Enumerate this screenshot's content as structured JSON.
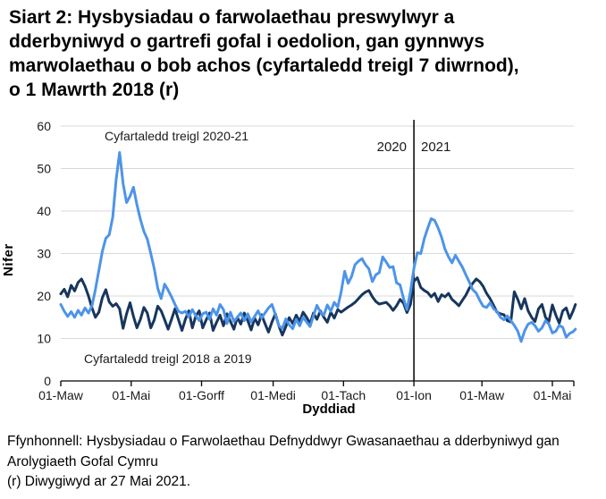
{
  "title": {
    "lines": [
      "Siart 2: Hysbysiadau o farwolaethau preswylwyr a",
      "dderbyniwyd o gartrefi gofal i oedolion, gan gynnwys",
      "marwolaethau o bob achos (cyfartaledd treigl 7 diwrnod),",
      "o 1 Mawrth 2018 (r)"
    ]
  },
  "footer": {
    "source_lines": [
      "Ffynhonnell: Hysbysiadau o Farwolaethau Defnyddwyr Gwasanaethau a dderbyniwyd gan",
      "Arolygiaeth Gofal Cymru"
    ],
    "revision_note": "(r) Diwygiwyd ar 27 Mai 2021."
  },
  "chart_data": {
    "type": "line",
    "xlabel": "Dyddiad",
    "ylabel": "Nifer",
    "ylim": [
      0,
      60
    ],
    "grid": true,
    "colors": {
      "series_2020_21": "#4d94e9",
      "series_2018_2019": "#17365d",
      "grid": "#d9d9d9",
      "axis": "#000000"
    },
    "y_ticks": [
      0,
      10,
      20,
      30,
      40,
      50,
      60
    ],
    "x_ticks": [
      {
        "label": "01-Maw",
        "day": 0
      },
      {
        "label": "01-Mai",
        "day": 61
      },
      {
        "label": "01-Gorff",
        "day": 122
      },
      {
        "label": "01-Medi",
        "day": 184
      },
      {
        "label": "01-Tach",
        "day": 245
      },
      {
        "label": "01-Ion",
        "day": 306
      },
      {
        "label": "01-Maw",
        "day": 365
      },
      {
        "label": "01-Mai",
        "day": 426
      }
    ],
    "year_divider": {
      "day": 306,
      "left_label": "2020",
      "right_label": "2021"
    },
    "annotations": [
      {
        "text": "Cyfartaledd treigl 2020-21",
        "series": "2020-21"
      },
      {
        "text": "Cyfartaledd treigl 2018 a 2019",
        "series": "2018 a 2019"
      }
    ],
    "x_unit": "diwrnodau o 1 Mawrth (day 0 = 01-Maw)",
    "series": [
      {
        "name": "Cyfartaledd treigl 2020-21",
        "color": "#4d94e9",
        "points": [
          [
            0,
            18.0
          ],
          [
            3,
            16.4
          ],
          [
            6,
            15.2
          ],
          [
            9,
            16.3
          ],
          [
            12,
            15.0
          ],
          [
            15,
            16.6
          ],
          [
            18,
            15.5
          ],
          [
            21,
            17.2
          ],
          [
            24,
            16.0
          ],
          [
            27,
            17.7
          ],
          [
            30,
            21.5
          ],
          [
            33,
            26.0
          ],
          [
            36,
            30.5
          ],
          [
            39,
            33.6
          ],
          [
            42,
            34.4
          ],
          [
            45,
            38.5
          ],
          [
            48,
            47.5
          ],
          [
            51,
            53.8
          ],
          [
            54,
            46.5
          ],
          [
            57,
            42.0
          ],
          [
            60,
            43.5
          ],
          [
            63,
            45.6
          ],
          [
            66,
            41.5
          ],
          [
            69,
            38.0
          ],
          [
            72,
            35.2
          ],
          [
            75,
            33.4
          ],
          [
            78,
            30.0
          ],
          [
            81,
            26.4
          ],
          [
            84,
            21.8
          ],
          [
            87,
            19.4
          ],
          [
            90,
            22.8
          ],
          [
            93,
            21.4
          ],
          [
            96,
            19.8
          ],
          [
            99,
            18.0
          ],
          [
            102,
            16.4
          ],
          [
            105,
            16.0
          ],
          [
            108,
            16.4
          ],
          [
            111,
            15.1
          ],
          [
            114,
            16.8
          ],
          [
            117,
            15.4
          ],
          [
            120,
            14.2
          ],
          [
            123,
            15.8
          ],
          [
            126,
            16.2
          ],
          [
            129,
            14.5
          ],
          [
            132,
            17.0
          ],
          [
            135,
            15.5
          ],
          [
            138,
            18.0
          ],
          [
            141,
            16.8
          ],
          [
            144,
            13.5
          ],
          [
            147,
            16.2
          ],
          [
            150,
            14.0
          ],
          [
            153,
            15.0
          ],
          [
            156,
            16.0
          ],
          [
            159,
            14.2
          ],
          [
            162,
            15.8
          ],
          [
            165,
            13.9
          ],
          [
            168,
            15.2
          ],
          [
            171,
            16.5
          ],
          [
            174,
            14.8
          ],
          [
            177,
            16.0
          ],
          [
            180,
            17.2
          ],
          [
            183,
            18.0
          ],
          [
            186,
            15.6
          ],
          [
            189,
            13.0
          ],
          [
            192,
            12.4
          ],
          [
            195,
            14.6
          ],
          [
            198,
            13.2
          ],
          [
            201,
            12.3
          ],
          [
            204,
            14.5
          ],
          [
            207,
            13.0
          ],
          [
            210,
            15.0
          ],
          [
            213,
            13.9
          ],
          [
            216,
            12.8
          ],
          [
            219,
            15.3
          ],
          [
            222,
            17.8
          ],
          [
            225,
            16.2
          ],
          [
            228,
            15.5
          ],
          [
            231,
            17.9
          ],
          [
            234,
            16.4
          ],
          [
            237,
            18.5
          ],
          [
            240,
            17.4
          ],
          [
            243,
            21.0
          ],
          [
            246,
            25.8
          ],
          [
            249,
            23.0
          ],
          [
            252,
            24.6
          ],
          [
            255,
            27.4
          ],
          [
            258,
            28.2
          ],
          [
            261,
            28.8
          ],
          [
            264,
            27.4
          ],
          [
            267,
            26.4
          ],
          [
            270,
            23.4
          ],
          [
            273,
            25.0
          ],
          [
            276,
            25.5
          ],
          [
            279,
            29.2
          ],
          [
            282,
            28.0
          ],
          [
            285,
            26.7
          ],
          [
            288,
            26.9
          ],
          [
            291,
            23.1
          ],
          [
            294,
            22.6
          ],
          [
            297,
            19.4
          ],
          [
            300,
            16.8
          ],
          [
            303,
            21.0
          ],
          [
            306,
            26.5
          ],
          [
            309,
            30.2
          ],
          [
            312,
            30.0
          ],
          [
            315,
            33.5
          ],
          [
            318,
            36.0
          ],
          [
            321,
            38.2
          ],
          [
            324,
            37.8
          ],
          [
            327,
            36.0
          ],
          [
            330,
            33.8
          ],
          [
            333,
            31.0
          ],
          [
            336,
            29.2
          ],
          [
            339,
            27.8
          ],
          [
            342,
            29.6
          ],
          [
            345,
            28.2
          ],
          [
            348,
            26.8
          ],
          [
            351,
            25.0
          ],
          [
            354,
            23.3
          ],
          [
            357,
            21.5
          ],
          [
            360,
            20.7
          ],
          [
            363,
            19.0
          ],
          [
            366,
            17.6
          ],
          [
            369,
            17.3
          ],
          [
            372,
            18.4
          ],
          [
            375,
            17.0
          ],
          [
            378,
            16.4
          ],
          [
            381,
            15.0
          ],
          [
            384,
            14.4
          ],
          [
            387,
            15.3
          ],
          [
            390,
            14.2
          ],
          [
            393,
            13.1
          ],
          [
            396,
            11.7
          ],
          [
            399,
            9.3
          ],
          [
            402,
            11.8
          ],
          [
            405,
            13.4
          ],
          [
            408,
            13.8
          ],
          [
            411,
            13.0
          ],
          [
            414,
            11.7
          ],
          [
            417,
            12.5
          ],
          [
            420,
            14.2
          ],
          [
            423,
            13.4
          ],
          [
            426,
            11.3
          ],
          [
            429,
            11.7
          ],
          [
            432,
            13.1
          ],
          [
            435,
            12.6
          ],
          [
            438,
            10.3
          ],
          [
            441,
            11.2
          ],
          [
            444,
            11.6
          ],
          [
            446,
            12.2
          ]
        ]
      },
      {
        "name": "Cyfartaledd treigl 2018 a 2019",
        "color": "#17365d",
        "points": [
          [
            0,
            20.5
          ],
          [
            3,
            21.6
          ],
          [
            6,
            19.8
          ],
          [
            9,
            22.5
          ],
          [
            12,
            21.2
          ],
          [
            15,
            23.2
          ],
          [
            18,
            24.0
          ],
          [
            21,
            22.3
          ],
          [
            24,
            20.0
          ],
          [
            27,
            17.2
          ],
          [
            30,
            15.0
          ],
          [
            33,
            16.2
          ],
          [
            36,
            19.6
          ],
          [
            39,
            21.5
          ],
          [
            42,
            18.6
          ],
          [
            45,
            17.6
          ],
          [
            48,
            18.2
          ],
          [
            51,
            17.0
          ],
          [
            54,
            12.4
          ],
          [
            57,
            15.8
          ],
          [
            60,
            18.4
          ],
          [
            63,
            15.2
          ],
          [
            66,
            12.5
          ],
          [
            69,
            14.5
          ],
          [
            72,
            17.3
          ],
          [
            75,
            16.0
          ],
          [
            78,
            12.5
          ],
          [
            81,
            14.4
          ],
          [
            84,
            17.6
          ],
          [
            87,
            16.5
          ],
          [
            90,
            14.4
          ],
          [
            93,
            12.2
          ],
          [
            96,
            14.5
          ],
          [
            99,
            17.0
          ],
          [
            102,
            14.4
          ],
          [
            105,
            11.9
          ],
          [
            108,
            14.5
          ],
          [
            111,
            16.5
          ],
          [
            114,
            12.5
          ],
          [
            117,
            15.3
          ],
          [
            120,
            16.5
          ],
          [
            123,
            12.5
          ],
          [
            126,
            14.4
          ],
          [
            129,
            16.0
          ],
          [
            132,
            11.9
          ],
          [
            135,
            13.8
          ],
          [
            138,
            15.5
          ],
          [
            141,
            13.0
          ],
          [
            144,
            15.8
          ],
          [
            147,
            14.0
          ],
          [
            150,
            12.2
          ],
          [
            153,
            15.0
          ],
          [
            156,
            13.4
          ],
          [
            159,
            16.0
          ],
          [
            162,
            14.2
          ],
          [
            165,
            12.0
          ],
          [
            168,
            14.8
          ],
          [
            171,
            13.2
          ],
          [
            174,
            15.6
          ],
          [
            177,
            13.5
          ],
          [
            180,
            11.5
          ],
          [
            183,
            13.9
          ],
          [
            186,
            15.8
          ],
          [
            189,
            13.0
          ],
          [
            192,
            10.8
          ],
          [
            195,
            12.8
          ],
          [
            198,
            14.9
          ],
          [
            201,
            13.5
          ],
          [
            204,
            15.5
          ],
          [
            207,
            14.0
          ],
          [
            210,
            16.2
          ],
          [
            213,
            15.0
          ],
          [
            216,
            13.5
          ],
          [
            219,
            16.0
          ],
          [
            222,
            14.5
          ],
          [
            225,
            16.5
          ],
          [
            228,
            15.0
          ],
          [
            231,
            13.8
          ],
          [
            234,
            16.2
          ],
          [
            237,
            14.8
          ],
          [
            240,
            16.8
          ],
          [
            243,
            16.2
          ],
          [
            246,
            16.8
          ],
          [
            249,
            17.4
          ],
          [
            252,
            17.9
          ],
          [
            255,
            18.5
          ],
          [
            258,
            19.4
          ],
          [
            261,
            20.3
          ],
          [
            264,
            20.9
          ],
          [
            267,
            21.3
          ],
          [
            270,
            19.8
          ],
          [
            273,
            18.7
          ],
          [
            276,
            18.1
          ],
          [
            279,
            18.3
          ],
          [
            282,
            18.5
          ],
          [
            285,
            17.7
          ],
          [
            288,
            16.6
          ],
          [
            291,
            17.7
          ],
          [
            294,
            19.2
          ],
          [
            297,
            18.3
          ],
          [
            300,
            16.1
          ],
          [
            303,
            18.0
          ],
          [
            306,
            23.5
          ],
          [
            309,
            24.3
          ],
          [
            312,
            22.0
          ],
          [
            315,
            21.3
          ],
          [
            318,
            20.8
          ],
          [
            321,
            19.8
          ],
          [
            324,
            20.6
          ],
          [
            327,
            18.7
          ],
          [
            330,
            20.3
          ],
          [
            333,
            19.8
          ],
          [
            336,
            20.6
          ],
          [
            339,
            19.2
          ],
          [
            342,
            18.5
          ],
          [
            345,
            17.7
          ],
          [
            348,
            19.0
          ],
          [
            351,
            20.2
          ],
          [
            354,
            21.8
          ],
          [
            357,
            23.0
          ],
          [
            360,
            24.0
          ],
          [
            363,
            23.4
          ],
          [
            366,
            22.3
          ],
          [
            369,
            20.6
          ],
          [
            372,
            19.4
          ],
          [
            375,
            17.8
          ],
          [
            378,
            16.2
          ],
          [
            381,
            15.8
          ],
          [
            384,
            15.6
          ],
          [
            387,
            14.2
          ],
          [
            390,
            13.9
          ],
          [
            393,
            21.0
          ],
          [
            396,
            19.2
          ],
          [
            399,
            17.0
          ],
          [
            402,
            19.4
          ],
          [
            405,
            16.5
          ],
          [
            408,
            15.0
          ],
          [
            411,
            14.0
          ],
          [
            414,
            17.0
          ],
          [
            417,
            18.0
          ],
          [
            420,
            15.0
          ],
          [
            423,
            14.0
          ],
          [
            426,
            17.9
          ],
          [
            429,
            15.5
          ],
          [
            432,
            13.6
          ],
          [
            435,
            16.5
          ],
          [
            438,
            17.2
          ],
          [
            441,
            14.7
          ],
          [
            444,
            16.5
          ],
          [
            446,
            18.0
          ]
        ]
      }
    ]
  }
}
